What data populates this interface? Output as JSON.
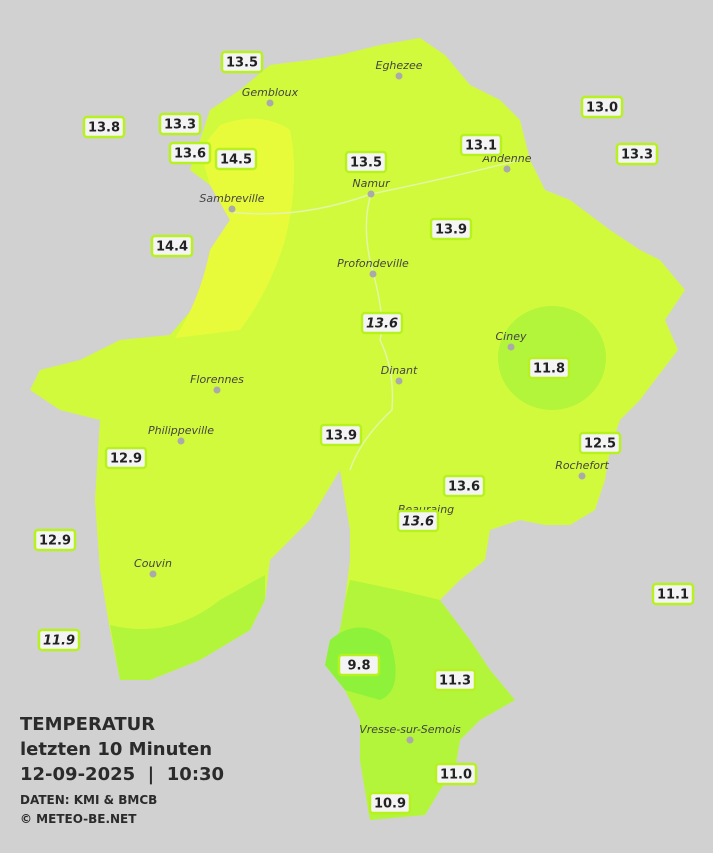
{
  "header": {
    "title": "TEMPERATUR",
    "subtitle": "letzten 10 Minuten",
    "timestamp": "12-09-2025  |  10:30",
    "source": "DATEN: KMI & BMCB",
    "copyright": "© METEO-BE.NET"
  },
  "towns": [
    "Eghezee",
    "Gembloux",
    "Andenne",
    "Namur",
    "Sambreville",
    "Profondeville",
    "Ciney",
    "Dinant",
    "Florennes",
    "Philippeville",
    "Rochefort",
    "Beauraing",
    "Couvin",
    "Vresse-sur-Semois"
  ],
  "stations": [
    {
      "value": "13.5"
    },
    {
      "value": "13.8"
    },
    {
      "value": "13.3"
    },
    {
      "value": "13.6"
    },
    {
      "value": "14.5"
    },
    {
      "value": "13.5"
    },
    {
      "value": "13.1"
    },
    {
      "value": "13.0"
    },
    {
      "value": "13.3"
    },
    {
      "value": "14.4"
    },
    {
      "value": "13.9"
    },
    {
      "value": "13.6",
      "italic": true
    },
    {
      "value": "11.8"
    },
    {
      "value": "13.9"
    },
    {
      "value": "12.9"
    },
    {
      "value": "12.5"
    },
    {
      "value": "13.6"
    },
    {
      "value": "13.6",
      "italic": true
    },
    {
      "value": "12.9"
    },
    {
      "value": "11.1"
    },
    {
      "value": "11.9",
      "italic": true
    },
    {
      "value": "9.8"
    },
    {
      "value": "11.3"
    },
    {
      "value": "11.0"
    },
    {
      "value": "10.9"
    }
  ]
}
